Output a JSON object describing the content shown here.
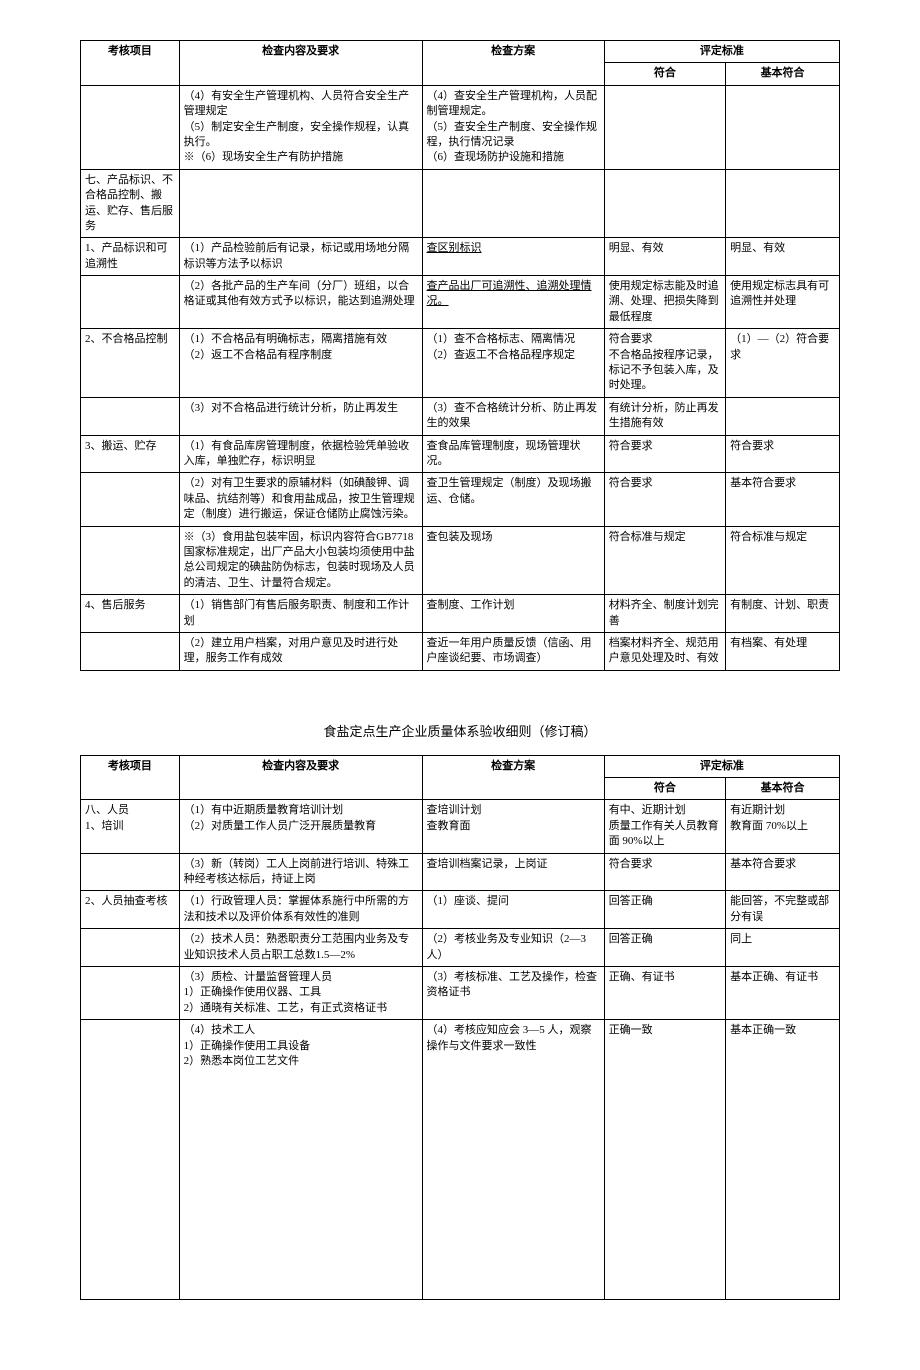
{
  "table1": {
    "headers": {
      "item": "考核项目",
      "content": "检查内容及要求",
      "plan": "检查方案",
      "standard": "评定标准",
      "conform": "符合",
      "basic": "基本符合"
    },
    "rows": [
      {
        "item": "",
        "content": "（4）有安全生产管理机构、人员符合安全生产管理规定\n（5）制定安全生产制度，安全操作规程，认真执行。\n※（6）现场安全生产有防护措施",
        "plan": "（4）查安全生产管理机构，人员配制管理规定。\n（5）查安全生产制度、安全操作规程，执行情况记录\n（6）查现场防护设施和措施",
        "conform": "",
        "basic": ""
      },
      {
        "item": "七、产品标识、不合格品控制、搬运、贮存、售后服务",
        "content": "",
        "plan": "",
        "conform": "",
        "basic": ""
      },
      {
        "item": "1、产品标识和可追溯性",
        "content": "（1）产品检验前后有记录，标记或用场地分隔标识等方法予以标识",
        "plan": "查区别标识",
        "plan_underline": true,
        "conform": "明显、有效",
        "basic": "明显、有效"
      },
      {
        "item": "",
        "content": "（2）各批产品的生产车间（分厂）班组，以合格证或其他有效方式予以标识，能达到追溯处理",
        "plan": "查产品出厂可追溯性、追溯处理情况。",
        "plan_underline": true,
        "conform": "使用规定标志能及时追溯、处理、把损失降到最低程度",
        "basic": "使用规定标志具有可追溯性并处理"
      },
      {
        "item": "2、不合格品控制",
        "content": "（1）不合格品有明确标志，隔离措施有效\n（2）返工不合格品有程序制度",
        "plan": "（1）查不合格标志、隔离情况\n（2）查返工不合格品程序规定",
        "conform": "符合要求\n不合格品按程序记录，标记不予包装入库，及时处理。",
        "basic": "（1）—（2）符合要求"
      },
      {
        "item": "",
        "content": "（3）对不合格品进行统计分析，防止再发生",
        "plan": "（3）查不合格统计分析、防止再发生的效果",
        "conform": "有统计分析，防止再发生措施有效",
        "basic": ""
      },
      {
        "item": "3、搬运、贮存",
        "content": "（1）有食品库房管理制度，依据检验凭单验收入库，单独贮存，标识明显",
        "plan": "查食品库管理制度，现场管理状况。",
        "conform": "符合要求",
        "basic": "符合要求"
      },
      {
        "item": "",
        "content": "（2）对有卫生要求的原辅材料（如碘酸钾、调味品、抗结剂等）和食用盐成品，按卫生管理规定（制度）进行搬运，保证仓储防止腐蚀污染。",
        "plan": "查卫生管理规定（制度）及现场搬运、仓储。",
        "conform": "符合要求",
        "basic": "基本符合要求"
      },
      {
        "item": "",
        "content": "※（3）食用盐包装牢固，标识内容符合GB7718 国家标准规定，出厂产品大小包装均须使用中盐总公司规定的碘盐防伪标志，包装时现场及人员的清洁、卫生、计量符合规定。",
        "plan": "查包装及现场",
        "conform": "符合标准与规定",
        "basic": "符合标准与规定"
      },
      {
        "item": "4、售后服务",
        "content": "（1）销售部门有售后服务职责、制度和工作计划",
        "plan": "查制度、工作计划",
        "conform": "材料齐全、制度计划完善",
        "basic": "有制度、计划、职责"
      },
      {
        "item": "",
        "content": "（2）建立用户档案，对用户意见及时进行处理，服务工作有成效",
        "plan": "查近一年用户质量反馈（信函、用户座谈纪要、市场调查）",
        "conform": "档案材料齐全、规范用户意见处理及时、有效",
        "basic": "有档案、有处理"
      }
    ]
  },
  "mid_title": "食盐定点生产企业质量体系验收细则（修订稿）",
  "table2": {
    "headers": {
      "item": "考核项目",
      "content": "检查内容及要求",
      "plan": "检查方案",
      "standard": "评定标准",
      "conform": "符合",
      "basic": "基本符合"
    },
    "rows": [
      {
        "item": "八、人员\n1、培训",
        "content": "（1）有中近期质量教育培训计划\n（2）对质量工作人员广泛开展质量教育",
        "plan": "查培训计划\n查教育面",
        "conform": "有中、近期计划\n质量工作有关人员教育面 90%以上",
        "basic": "有近期计划\n教育面 70%以上"
      },
      {
        "item": "",
        "content": "（3）新（转岗）工人上岗前进行培训、特殊工种经考核达标后，持证上岗",
        "plan": "查培训档案记录，上岗证",
        "conform": "符合要求",
        "basic": "基本符合要求"
      },
      {
        "item": "2、人员抽查考核",
        "content": "（1）行政管理人员：掌握体系施行中所需的方法和技术以及评价体系有效性的准则",
        "plan": "（1）座谈、提问",
        "conform": "回答正确",
        "basic": "能回答，不完整或部分有误"
      },
      {
        "item": "",
        "content": "（2）技术人员：熟悉职责分工范围内业务及专业知识技术人员占职工总数1.5—2%",
        "plan": "（2）考核业务及专业知识（2—3 人）",
        "conform": "回答正确",
        "basic": "同上"
      },
      {
        "item": "",
        "content": "（3）质检、计量监督管理人员\n1）正确操作使用仪器、工具\n2）通晓有关标准、工艺，有正式资格证书",
        "plan": "（3）考核标准、工艺及操作，检查资格证书",
        "conform": "正确、有证书",
        "basic": "基本正确、有证书"
      },
      {
        "item": "",
        "content": "（4）技术工人\n1）正确操作使用工具设备\n2）熟悉本岗位工艺文件",
        "plan": "（4）考核应知应会 3—5 人，观察操作与文件要求一致性",
        "conform": "正确一致",
        "basic": "基本正确一致",
        "tall": true
      }
    ]
  }
}
